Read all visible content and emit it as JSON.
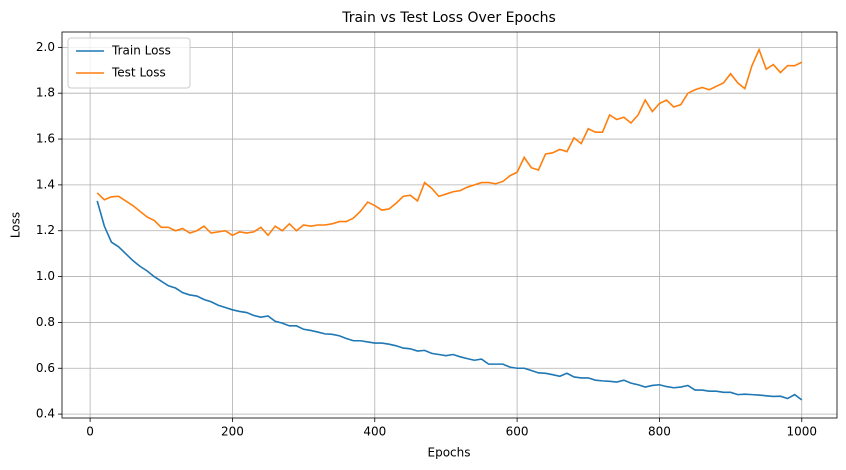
{
  "chart_data": {
    "type": "line",
    "title": "Train vs Test Loss Over Epochs",
    "xlabel": "Epochs",
    "ylabel": "Loss",
    "x": [
      10,
      20,
      30,
      40,
      50,
      60,
      70,
      80,
      90,
      100,
      110,
      120,
      130,
      140,
      150,
      160,
      170,
      180,
      190,
      200,
      210,
      220,
      230,
      240,
      250,
      260,
      270,
      280,
      290,
      300,
      310,
      320,
      330,
      340,
      350,
      360,
      370,
      380,
      390,
      400,
      410,
      420,
      430,
      440,
      450,
      460,
      470,
      480,
      490,
      500,
      510,
      520,
      530,
      540,
      550,
      560,
      570,
      580,
      590,
      600,
      610,
      620,
      630,
      640,
      650,
      660,
      670,
      680,
      690,
      700,
      710,
      720,
      730,
      740,
      750,
      760,
      770,
      780,
      790,
      800,
      810,
      820,
      830,
      840,
      850,
      860,
      870,
      880,
      890,
      900,
      910,
      920,
      930,
      940,
      950,
      960,
      970,
      980,
      990,
      1000
    ],
    "series": [
      {
        "name": "Train Loss",
        "color": "#1f77b4",
        "values": [
          1.33,
          1.22,
          1.15,
          1.13,
          1.1,
          1.07,
          1.045,
          1.025,
          1.0,
          0.98,
          0.96,
          0.95,
          0.93,
          0.92,
          0.915,
          0.9,
          0.89,
          0.875,
          0.865,
          0.855,
          0.848,
          0.843,
          0.83,
          0.823,
          0.828,
          0.805,
          0.797,
          0.785,
          0.785,
          0.77,
          0.765,
          0.758,
          0.75,
          0.748,
          0.742,
          0.73,
          0.72,
          0.72,
          0.715,
          0.71,
          0.71,
          0.705,
          0.698,
          0.688,
          0.685,
          0.675,
          0.678,
          0.665,
          0.66,
          0.655,
          0.66,
          0.65,
          0.642,
          0.635,
          0.64,
          0.618,
          0.618,
          0.618,
          0.605,
          0.6,
          0.6,
          0.59,
          0.58,
          0.578,
          0.572,
          0.565,
          0.578,
          0.562,
          0.558,
          0.558,
          0.548,
          0.545,
          0.543,
          0.54,
          0.548,
          0.535,
          0.528,
          0.518,
          0.525,
          0.528,
          0.52,
          0.515,
          0.518,
          0.525,
          0.505,
          0.505,
          0.5,
          0.5,
          0.495,
          0.495,
          0.485,
          0.487,
          0.485,
          0.483,
          0.48,
          0.477,
          0.478,
          0.468,
          0.485,
          0.462
        ]
      },
      {
        "name": "Test Loss",
        "color": "#ff7f0e",
        "values": [
          1.365,
          1.335,
          1.348,
          1.35,
          1.33,
          1.31,
          1.285,
          1.26,
          1.245,
          1.215,
          1.215,
          1.2,
          1.21,
          1.19,
          1.2,
          1.22,
          1.19,
          1.195,
          1.2,
          1.18,
          1.195,
          1.19,
          1.195,
          1.215,
          1.18,
          1.22,
          1.2,
          1.23,
          1.2,
          1.225,
          1.22,
          1.225,
          1.225,
          1.23,
          1.24,
          1.24,
          1.255,
          1.285,
          1.325,
          1.31,
          1.29,
          1.295,
          1.32,
          1.35,
          1.355,
          1.33,
          1.41,
          1.385,
          1.35,
          1.36,
          1.37,
          1.375,
          1.39,
          1.4,
          1.41,
          1.41,
          1.405,
          1.415,
          1.44,
          1.455,
          1.52,
          1.475,
          1.465,
          1.535,
          1.54,
          1.555,
          1.545,
          1.605,
          1.58,
          1.645,
          1.63,
          1.63,
          1.705,
          1.685,
          1.695,
          1.67,
          1.705,
          1.77,
          1.72,
          1.755,
          1.77,
          1.74,
          1.75,
          1.8,
          1.815,
          1.825,
          1.815,
          1.83,
          1.845,
          1.885,
          1.845,
          1.82,
          1.92,
          1.99,
          1.905,
          1.925,
          1.89,
          1.92,
          1.92,
          1.935
        ]
      }
    ],
    "xlim": [
      -39.5,
      1049.5
    ],
    "ylim": [
      0.383,
      2.067
    ],
    "xticks": [
      0,
      200,
      400,
      600,
      800,
      1000
    ],
    "yticks": [
      0.4,
      0.6,
      0.8,
      {
        "value": 1,
        "label": "1.0"
      },
      1.2,
      1.4,
      1.6,
      1.8,
      {
        "value": 2,
        "label": "2.0"
      }
    ],
    "grid": true,
    "legend": "upper-left"
  }
}
